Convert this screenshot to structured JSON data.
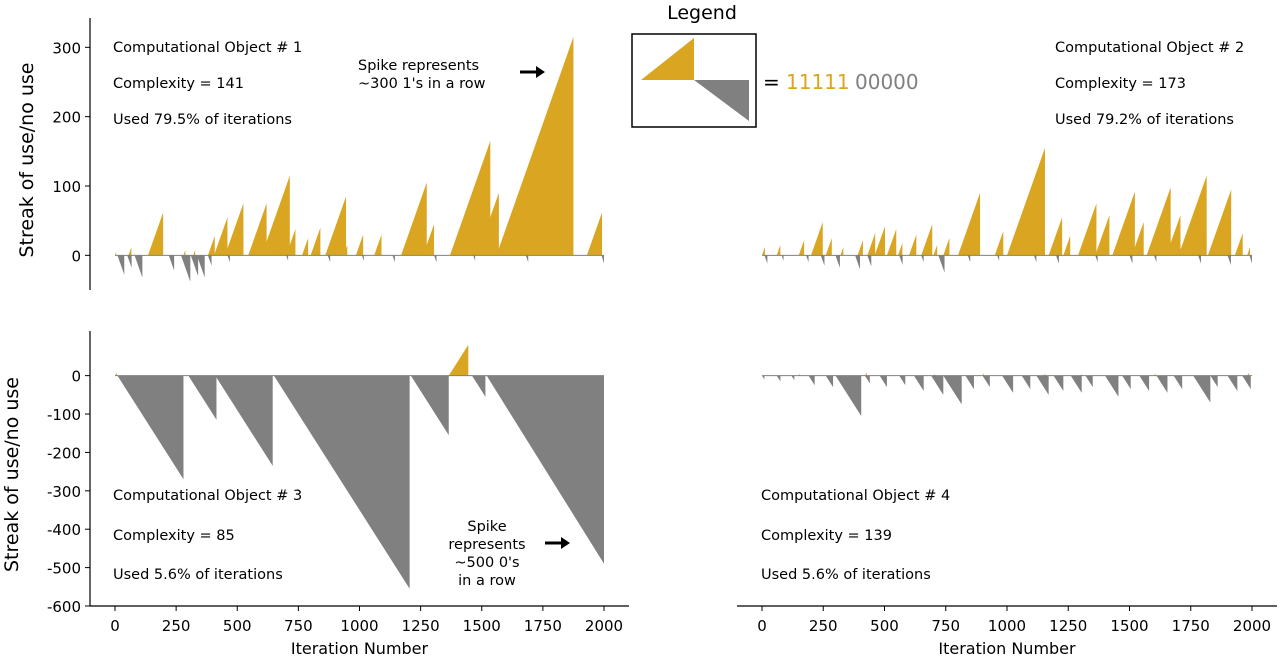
{
  "legend": {
    "title": "Legend",
    "equals": "=",
    "ones": "11111",
    "zeros": "00000"
  },
  "colors": {
    "use": "#DAA520",
    "no_use": "#808080",
    "axis": "#000000"
  },
  "chart_data": [
    {
      "type": "area",
      "id": "object-1",
      "ylabel": "Streak of use/no use",
      "xlabel": "",
      "xlim": [
        0,
        2000
      ],
      "ylim": [
        -50,
        325
      ],
      "yticks": [
        0,
        100,
        200,
        300
      ],
      "xticks": [],
      "annotation_lines": [
        "Computational Object # 1",
        "Complexity = 141",
        "Used 79.5% of iterations"
      ],
      "note_lines": [
        "Spike represents",
        "~300 1's in a row"
      ],
      "use_streaks": [
        [
          0,
          5
        ],
        [
          55,
          12
        ],
        [
          135,
          62
        ],
        [
          280,
          8
        ],
        [
          320,
          8
        ],
        [
          380,
          28
        ],
        [
          405,
          55
        ],
        [
          450,
          75
        ],
        [
          495,
          30
        ],
        [
          545,
          75
        ],
        [
          600,
          115
        ],
        [
          640,
          12
        ],
        [
          700,
          38
        ],
        [
          765,
          25
        ],
        [
          800,
          40
        ],
        [
          860,
          85
        ],
        [
          935,
          15
        ],
        [
          985,
          30
        ],
        [
          1060,
          30
        ],
        [
          1170,
          105
        ],
        [
          1225,
          25
        ],
        [
          1260,
          45
        ],
        [
          1370,
          165
        ],
        [
          1480,
          90
        ],
        [
          1560,
          315
        ],
        [
          1930,
          62
        ]
      ],
      "nouse_streaks": [
        [
          10,
          -28
        ],
        [
          50,
          -18
        ],
        [
          80,
          -32
        ],
        [
          220,
          -22
        ],
        [
          270,
          -38
        ],
        [
          310,
          -30
        ],
        [
          335,
          -32
        ],
        [
          380,
          -15
        ],
        [
          460,
          -10
        ],
        [
          700,
          -8
        ],
        [
          870,
          -10
        ],
        [
          1010,
          -8
        ],
        [
          1135,
          -10
        ],
        [
          1305,
          -10
        ],
        [
          1465,
          -8
        ],
        [
          1680,
          -10
        ],
        [
          1990,
          -12
        ]
      ]
    },
    {
      "type": "area",
      "id": "object-2",
      "ylabel": "",
      "xlabel": "",
      "xlim": [
        0,
        2000
      ],
      "ylim": [
        -50,
        325
      ],
      "yticks": [],
      "xticks": [],
      "annotation_lines": [
        "Computational Object # 2",
        "Complexity = 173",
        "Used 79.2% of iterations"
      ],
      "note_lines": [],
      "use_streaks": [
        [
          0,
          12
        ],
        [
          60,
          15
        ],
        [
          150,
          22
        ],
        [
          200,
          48
        ],
        [
          260,
          25
        ],
        [
          320,
          12
        ],
        [
          390,
          22
        ],
        [
          430,
          32
        ],
        [
          460,
          42
        ],
        [
          510,
          38
        ],
        [
          555,
          18
        ],
        [
          600,
          30
        ],
        [
          650,
          45
        ],
        [
          700,
          15
        ],
        [
          740,
          25
        ],
        [
          800,
          90
        ],
        [
          860,
          28
        ],
        [
          950,
          35
        ],
        [
          1000,
          155
        ],
        [
          1110,
          35
        ],
        [
          1170,
          55
        ],
        [
          1230,
          28
        ],
        [
          1290,
          75
        ],
        [
          1360,
          58
        ],
        [
          1430,
          92
        ],
        [
          1510,
          48
        ],
        [
          1570,
          98
        ],
        [
          1650,
          58
        ],
        [
          1700,
          115
        ],
        [
          1770,
          35
        ],
        [
          1820,
          95
        ],
        [
          1930,
          32
        ],
        [
          1980,
          12
        ]
      ],
      "nouse_streaks": [
        [
          10,
          -12
        ],
        [
          80,
          -8
        ],
        [
          180,
          -10
        ],
        [
          240,
          -15
        ],
        [
          300,
          -18
        ],
        [
          380,
          -20
        ],
        [
          430,
          -16
        ],
        [
          560,
          -14
        ],
        [
          650,
          -10
        ],
        [
          720,
          -25
        ],
        [
          840,
          -10
        ],
        [
          960,
          -8
        ],
        [
          1110,
          -10
        ],
        [
          1200,
          -12
        ],
        [
          1360,
          -10
        ],
        [
          1500,
          -12
        ],
        [
          1600,
          -10
        ],
        [
          1780,
          -12
        ],
        [
          1900,
          -14
        ],
        [
          1990,
          -12
        ]
      ]
    },
    {
      "type": "area",
      "id": "object-3",
      "ylabel": "Streak of use/no use",
      "xlabel": "Iteration Number",
      "xlim": [
        0,
        2000
      ],
      "ylim": [
        -600,
        85
      ],
      "yticks": [
        0,
        -100,
        -200,
        -300,
        -400,
        -500,
        -600
      ],
      "xticks": [
        0,
        250,
        500,
        750,
        1000,
        1250,
        1500,
        1750,
        2000
      ],
      "annotation_lines": [
        "Computational Object # 3",
        "Complexity = 85",
        "Used 5.6% of iterations"
      ],
      "note_lines": [
        "Spike",
        "represents",
        "~500 0's",
        "in a row"
      ],
      "use_streaks": [
        [
          0,
          8
        ],
        [
          1365,
          80
        ]
      ],
      "nouse_streaks": [
        [
          10,
          -270
        ],
        [
          300,
          -115
        ],
        [
          410,
          -235
        ],
        [
          650,
          -555
        ],
        [
          1210,
          -155
        ],
        [
          1460,
          -55
        ],
        [
          1520,
          -490
        ]
      ]
    },
    {
      "type": "area",
      "id": "object-4",
      "ylabel": "",
      "xlabel": "Iteration Number",
      "xlim": [
        0,
        2000
      ],
      "ylim": [
        -600,
        85
      ],
      "yticks": [],
      "xticks": [
        0,
        250,
        500,
        750,
        1000,
        1250,
        1500,
        1750,
        2000
      ],
      "annotation_lines": [
        "Computational Object # 4",
        "Complexity = 139",
        "Used 5.6% of iterations"
      ],
      "note_lines": [],
      "use_streaks": [
        [
          150,
          5
        ],
        [
          420,
          8
        ],
        [
          700,
          5
        ],
        [
          900,
          6
        ],
        [
          1150,
          6
        ],
        [
          1300,
          5
        ],
        [
          1600,
          6
        ],
        [
          1980,
          8
        ]
      ],
      "nouse_streaks": [
        [
          0,
          -10
        ],
        [
          60,
          -15
        ],
        [
          120,
          -12
        ],
        [
          190,
          -25
        ],
        [
          260,
          -30
        ],
        [
          300,
          -105
        ],
        [
          420,
          -20
        ],
        [
          480,
          -30
        ],
        [
          560,
          -25
        ],
        [
          620,
          -40
        ],
        [
          690,
          -50
        ],
        [
          740,
          -75
        ],
        [
          830,
          -35
        ],
        [
          900,
          -30
        ],
        [
          980,
          -45
        ],
        [
          1060,
          -35
        ],
        [
          1120,
          -50
        ],
        [
          1190,
          -40
        ],
        [
          1260,
          -45
        ],
        [
          1320,
          -30
        ],
        [
          1400,
          -55
        ],
        [
          1470,
          -35
        ],
        [
          1540,
          -40
        ],
        [
          1610,
          -45
        ],
        [
          1680,
          -35
        ],
        [
          1760,
          -70
        ],
        [
          1830,
          -30
        ],
        [
          1900,
          -40
        ],
        [
          1960,
          -35
        ]
      ]
    }
  ]
}
